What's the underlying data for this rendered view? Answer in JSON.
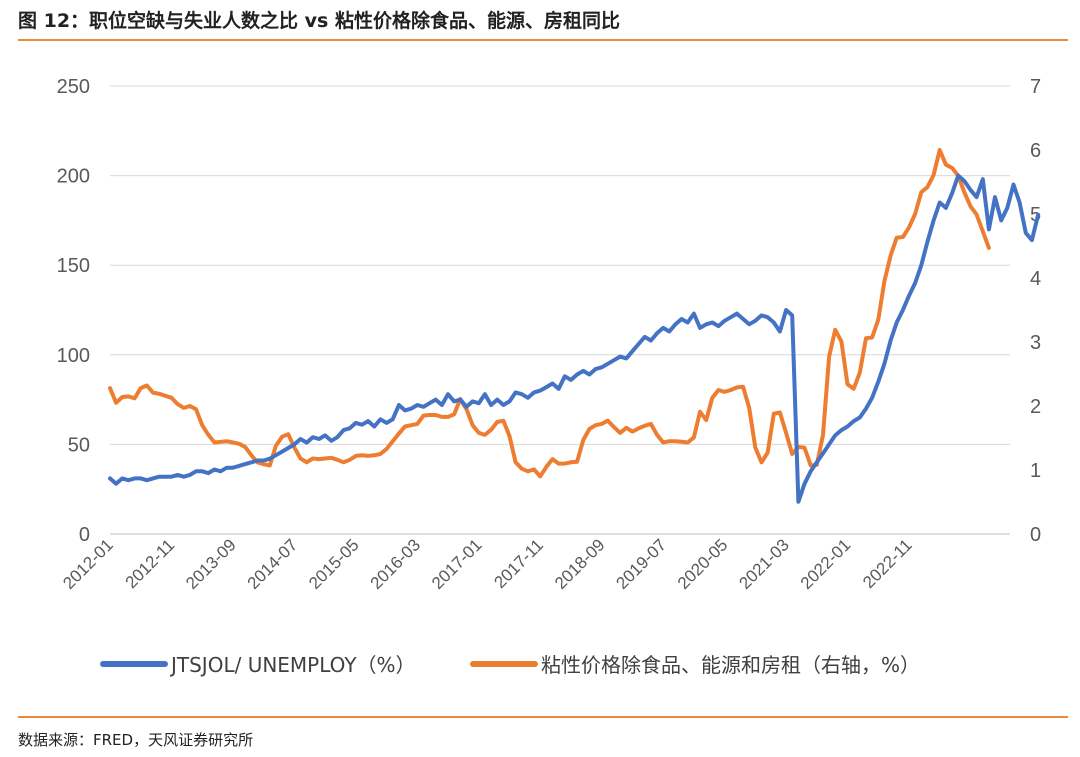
{
  "header": {
    "title": "图 12：职位空缺与失业人数之比 vs 粘性价格除食品、能源、房租同比"
  },
  "footer": {
    "source": "数据来源：FRED，天风证券研究所"
  },
  "colors": {
    "series1": "#4472c4",
    "series2": "#ed7d31",
    "grid": "#d9d9d9",
    "rule": "#e98b3a"
  },
  "chart_data": {
    "type": "line",
    "title": "",
    "x_tick_labels": [
      "2012-01",
      "2012-11",
      "2013-09",
      "2014-07",
      "2015-05",
      "2016-03",
      "2017-01",
      "2017-11",
      "2018-09",
      "2019-07",
      "2020-05",
      "2021-03",
      "2022-01",
      "2022-11"
    ],
    "left_axis": {
      "ticks": [
        "0",
        "50",
        "100",
        "150",
        "200",
        "250"
      ],
      "ylim": [
        0,
        250
      ]
    },
    "right_axis": {
      "ticks": [
        "0",
        "1",
        "2",
        "3",
        "4",
        "5",
        "6",
        "7"
      ],
      "ylim": [
        0,
        7
      ]
    },
    "grid": "horizontal",
    "legend_position": "bottom",
    "series": [
      {
        "name": "JTSJOL/ UNEMPLOY（%）",
        "axis": "left",
        "x_start": "2012-01",
        "values": [
          31,
          28,
          31,
          30,
          31,
          31,
          30,
          31,
          32,
          32,
          32,
          33,
          32,
          33,
          35,
          35,
          34,
          36,
          35,
          37,
          37,
          38,
          39,
          40,
          41,
          41,
          42,
          44,
          46,
          48,
          50,
          53,
          51,
          54,
          53,
          55,
          52,
          54,
          58,
          59,
          62,
          61,
          63,
          60,
          64,
          62,
          64,
          72,
          69,
          70,
          72,
          71,
          73,
          75,
          72,
          78,
          74,
          75,
          71,
          74,
          73,
          78,
          72,
          75,
          72,
          74,
          79,
          78,
          76,
          79,
          80,
          82,
          84,
          81,
          88,
          86,
          89,
          91,
          89,
          92,
          93,
          95,
          97,
          99,
          98,
          102,
          106,
          110,
          108,
          112,
          115,
          113,
          117,
          120,
          118,
          123,
          115,
          117,
          118,
          116,
          119,
          121,
          123,
          120,
          117,
          119,
          122,
          121,
          118,
          113,
          125,
          122,
          18,
          28,
          35,
          40,
          45,
          50,
          55,
          58,
          60,
          63,
          65,
          70,
          76,
          85,
          95,
          108,
          118,
          125,
          133,
          140,
          150,
          163,
          175,
          185,
          182,
          190,
          200,
          197,
          192,
          188,
          198,
          170,
          188,
          175,
          182,
          195,
          185,
          168,
          164,
          178
        ]
      },
      {
        "name": "粘性价格除食品、能源和房租（右轴，%）",
        "axis": "right",
        "x_start": "2012-01",
        "values": [
          2.28,
          2.05,
          2.14,
          2.15,
          2.12,
          2.28,
          2.32,
          2.21,
          2.19,
          2.16,
          2.13,
          2.03,
          1.97,
          2.0,
          1.95,
          1.7,
          1.55,
          1.43,
          1.44,
          1.45,
          1.43,
          1.41,
          1.36,
          1.23,
          1.12,
          1.09,
          1.07,
          1.38,
          1.52,
          1.56,
          1.35,
          1.18,
          1.12,
          1.18,
          1.17,
          1.18,
          1.19,
          1.16,
          1.12,
          1.16,
          1.22,
          1.23,
          1.22,
          1.23,
          1.25,
          1.33,
          1.45,
          1.57,
          1.68,
          1.7,
          1.72,
          1.85,
          1.86,
          1.86,
          1.83,
          1.83,
          1.87,
          2.11,
          1.95,
          1.7,
          1.58,
          1.55,
          1.63,
          1.75,
          1.77,
          1.53,
          1.12,
          1.02,
          0.98,
          1.01,
          0.9,
          1.05,
          1.17,
          1.1,
          1.1,
          1.12,
          1.13,
          1.47,
          1.64,
          1.7,
          1.72,
          1.77,
          1.67,
          1.58,
          1.66,
          1.6,
          1.65,
          1.69,
          1.72,
          1.55,
          1.43,
          1.45,
          1.45,
          1.44,
          1.43,
          1.51,
          1.91,
          1.78,
          2.13,
          2.25,
          2.22,
          2.25,
          2.29,
          2.3,
          1.97,
          1.35,
          1.12,
          1.27,
          1.88,
          1.9,
          1.58,
          1.25,
          1.36,
          1.35,
          1.07,
          1.08,
          1.55,
          2.77,
          3.19,
          3.01,
          2.34,
          2.27,
          2.52,
          3.06,
          3.07,
          3.35,
          3.95,
          4.35,
          4.63,
          4.64,
          4.79,
          5.0,
          5.34,
          5.42,
          5.61,
          6.0,
          5.77,
          5.72,
          5.6,
          5.34,
          5.12,
          4.99,
          4.73,
          4.47
        ]
      }
    ]
  }
}
